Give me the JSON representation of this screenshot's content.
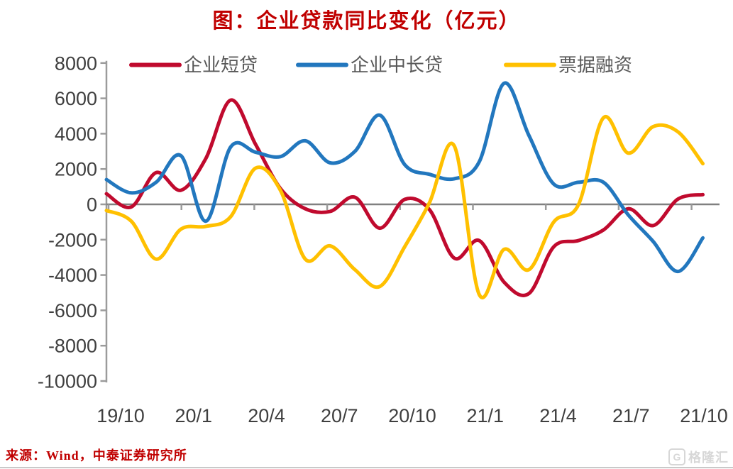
{
  "title": "图：企业贷款同比变化（亿元）",
  "source": "来源：Wind，中泰证券研究所",
  "watermark": {
    "icon": "G",
    "label": "格隆汇"
  },
  "colors": {
    "title": "#C00000",
    "source": "#C00000",
    "axis_line": "#9b9b9b",
    "zero_line": "#808080",
    "tick_label": "#3f3f3f",
    "legend_text": "#595959",
    "series_red": "#C00A2E",
    "series_blue": "#2277BE",
    "series_yellow": "#FFC000",
    "watermark_gray": "#d7d7d7"
  },
  "chart_data": {
    "type": "line",
    "title": "图：企业贷款同比变化（亿元）",
    "xlabel": "",
    "ylabel": "",
    "ylim": [
      -10000,
      8000
    ],
    "ytick_step": 2000,
    "grid": false,
    "legend_position": "top-inside",
    "smooth": true,
    "y_ticks": [
      8000,
      6000,
      4000,
      2000,
      0,
      -2000,
      -4000,
      -6000,
      -8000,
      -10000
    ],
    "x_labels": [
      "19/10",
      "20/1",
      "20/4",
      "20/7",
      "20/10",
      "21/1",
      "21/4",
      "21/7",
      "21/10"
    ],
    "categories": [
      "19/10",
      "19/11",
      "19/12",
      "20/1",
      "20/2",
      "20/3",
      "20/4",
      "20/5",
      "20/6",
      "20/7",
      "20/8",
      "20/9",
      "20/10",
      "20/11",
      "20/12",
      "21/1",
      "21/2",
      "21/3",
      "21/4",
      "21/5",
      "21/6",
      "21/7",
      "21/8",
      "21/9",
      "21/10"
    ],
    "series": [
      {
        "name": "企业短贷",
        "color": "#C00A2E",
        "values": [
          600,
          -150,
          1800,
          800,
          2600,
          5900,
          3400,
          900,
          -250,
          -400,
          400,
          -1350,
          280,
          -300,
          -3050,
          -2050,
          -4400,
          -5050,
          -2400,
          -2050,
          -1450,
          -250,
          -1200,
          300,
          550
        ]
      },
      {
        "name": "企业中长贷",
        "color": "#2277BE",
        "values": [
          1400,
          650,
          1250,
          2750,
          -950,
          3250,
          2950,
          2700,
          3600,
          2350,
          3000,
          5050,
          2250,
          1700,
          1450,
          2400,
          6850,
          3900,
          1150,
          1250,
          1250,
          -600,
          -2100,
          -3800,
          -1900
        ]
      },
      {
        "name": "票据融资",
        "color": "#FFC000",
        "values": [
          -350,
          -950,
          -3100,
          -1400,
          -1250,
          -700,
          2050,
          800,
          -3100,
          -2350,
          -3700,
          -4650,
          -2400,
          100,
          3300,
          -5100,
          -2550,
          -3700,
          -1000,
          0,
          4900,
          2900,
          4400,
          4100,
          2300
        ]
      }
    ]
  }
}
